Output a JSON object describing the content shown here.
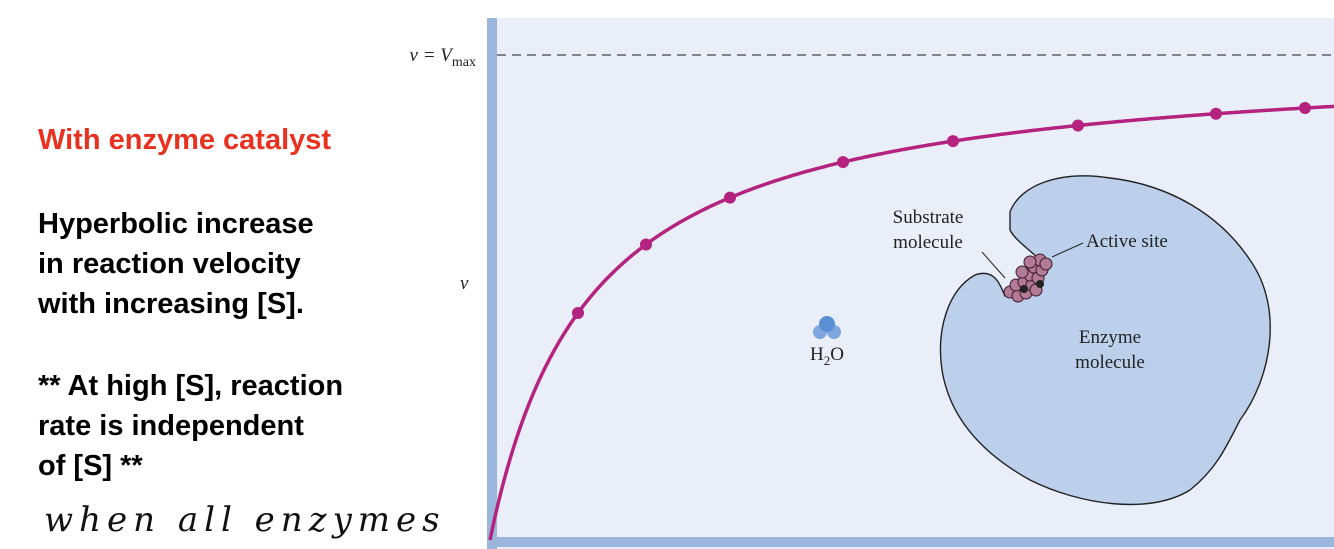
{
  "slide": {
    "heading": "With enzyme catalyst",
    "point_1": [
      "Hyperbolic increase",
      "in reaction velocity",
      "with increasing [S]."
    ],
    "point_2": [
      "** At high [S], reaction",
      "rate is independent",
      "of [S] **"
    ],
    "handwritten_note": "when all enzymes"
  },
  "diagram": {
    "vmax_label": {
      "main": "v = V",
      "subscript": "max"
    },
    "y_axis_label": "v",
    "substrate_label": [
      "Substrate",
      "molecule"
    ],
    "active_site_label": "Active site",
    "enzyme_label": [
      "Enzyme",
      "molecule"
    ],
    "water_label": {
      "main": "H",
      "subscript": "2",
      "tail": "O"
    }
  }
}
